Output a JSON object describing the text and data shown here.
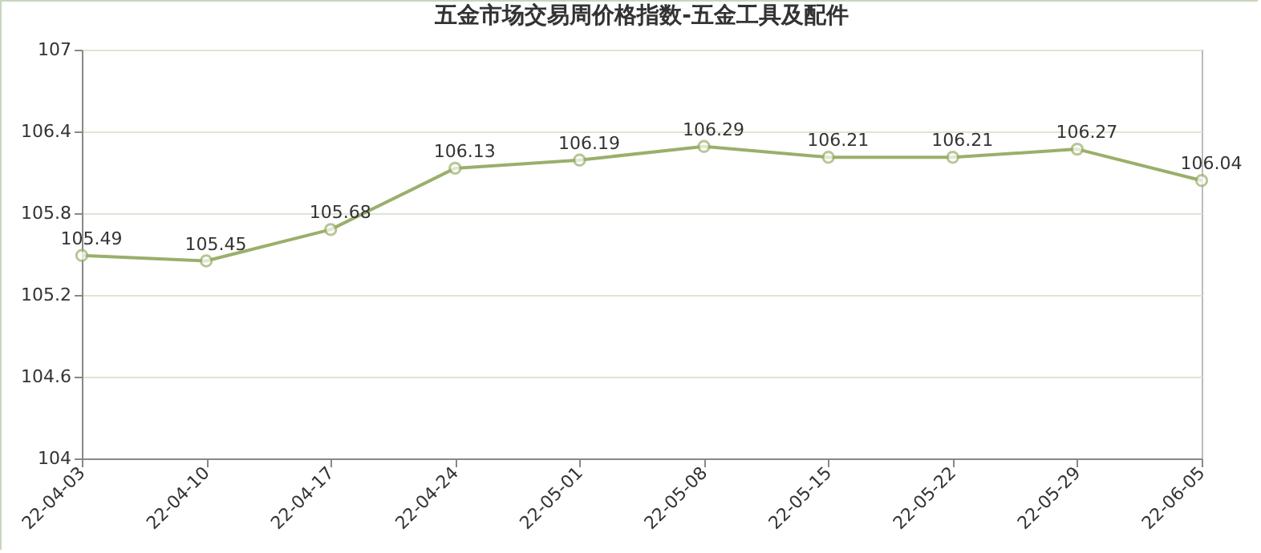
{
  "chart_data": {
    "type": "line",
    "title": "五金市场交易周价格指数-五金工具及配件",
    "categories": [
      "22-04-03",
      "22-04-10",
      "22-04-17",
      "22-04-24",
      "22-05-01",
      "22-05-08",
      "22-05-15",
      "22-05-22",
      "22-05-29",
      "22-06-05"
    ],
    "series": [
      {
        "color": "#9aaf6a",
        "values": [
          105.49,
          105.45,
          105.68,
          106.13,
          106.19,
          106.29,
          106.21,
          106.21,
          106.27,
          106.04
        ]
      }
    ],
    "ylim": [
      104,
      107
    ],
    "yticks": [
      104,
      104.6,
      105.2,
      105.8,
      106.4,
      107
    ],
    "grid": "y",
    "marker": "circle",
    "line_style": "solid",
    "data_labels": true
  }
}
